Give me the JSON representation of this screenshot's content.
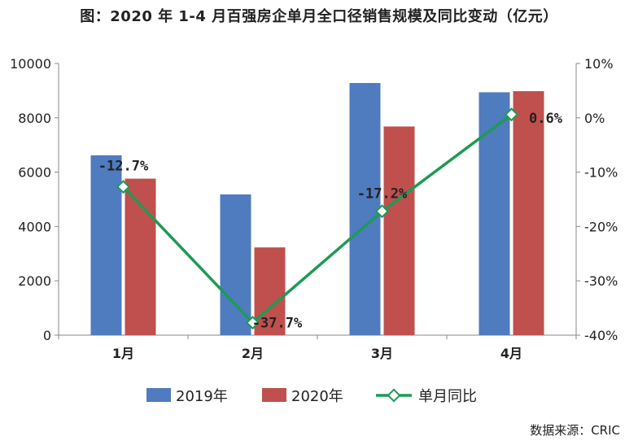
{
  "title": "图：2020 年 1-4 月百强房企单月全口径销售规模及同比变动（亿元）",
  "source": "数据来源：CRIC",
  "colors": {
    "series_2019": "#4f7bbf",
    "series_2020": "#c0504d",
    "yoy_line": "#1f9a55",
    "axis": "#888888",
    "text": "#222222"
  },
  "chart_data": {
    "type": "bar",
    "categories": [
      "1月",
      "2月",
      "3月",
      "4月"
    ],
    "series": [
      {
        "name": "2019年",
        "type": "bar",
        "axis": "left",
        "values": [
          6620,
          5180,
          9280,
          8940
        ]
      },
      {
        "name": "2020年",
        "type": "bar",
        "axis": "left",
        "values": [
          5760,
          3230,
          7680,
          8980
        ]
      },
      {
        "name": "单月同比",
        "type": "line",
        "axis": "right",
        "values": [
          -12.7,
          -37.7,
          -17.2,
          0.6
        ]
      }
    ],
    "data_labels": [
      "-12.7%",
      "-37.7%",
      "-17.2%",
      "0.6%"
    ],
    "y_left": {
      "range": [
        0,
        10000
      ],
      "ticks": [
        0,
        2000,
        4000,
        6000,
        8000,
        10000
      ],
      "tick_labels": [
        "0",
        "2000",
        "4000",
        "6000",
        "8000",
        "10000"
      ]
    },
    "y_right": {
      "range": [
        -40,
        10
      ],
      "ticks": [
        -40,
        -30,
        -20,
        -10,
        0,
        10
      ],
      "tick_labels": [
        "-40%",
        "-30%",
        "-20%",
        "-10%",
        "0%",
        "10%"
      ]
    },
    "grid": false,
    "legend": {
      "position": "bottom",
      "items": [
        "2019年",
        "2020年",
        "单月同比"
      ]
    }
  }
}
